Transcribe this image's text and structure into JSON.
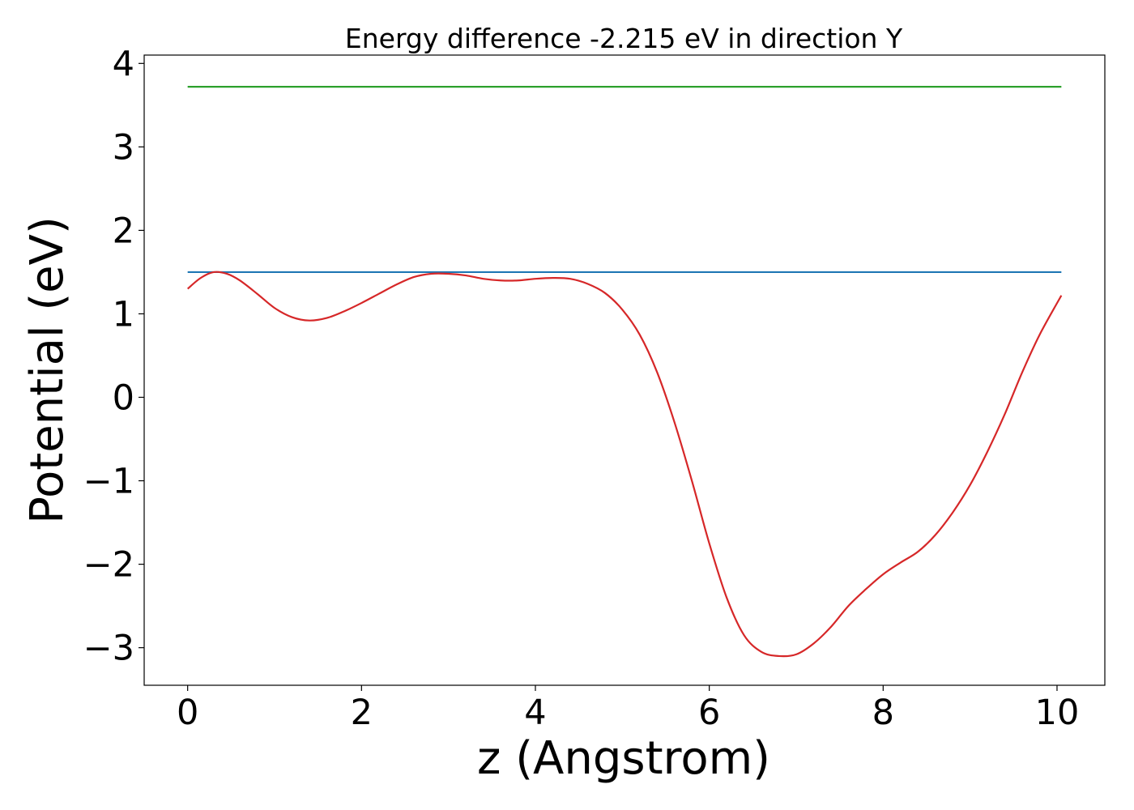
{
  "chart_data": {
    "type": "line",
    "title": "Energy difference -2.215 eV in direction Y",
    "xlabel": "z (Angstrom)",
    "ylabel": "Potential (eV)",
    "xlim": [
      -0.5,
      10.55
    ],
    "ylim": [
      -3.45,
      4.1
    ],
    "xticks": [
      0,
      2,
      4,
      6,
      8,
      10
    ],
    "xtick_labels": [
      "0",
      "2",
      "4",
      "6",
      "8",
      "10"
    ],
    "yticks": [
      -3,
      -2,
      -1,
      0,
      1,
      2,
      3,
      4
    ],
    "ytick_labels": [
      "−3",
      "−2",
      "−1",
      "0",
      "1",
      "2",
      "3",
      "4"
    ],
    "grid": false,
    "series": [
      {
        "color": "#2ca02c",
        "x": [
          0,
          10.05
        ],
        "y": [
          3.72,
          3.72
        ]
      },
      {
        "color": "#1f77b4",
        "x": [
          0,
          10.05
        ],
        "y": [
          1.5,
          1.5
        ]
      },
      {
        "color": "#d62728",
        "x": [
          0,
          0.15,
          0.3,
          0.45,
          0.6,
          0.8,
          1.0,
          1.2,
          1.4,
          1.6,
          1.8,
          2.0,
          2.2,
          2.4,
          2.6,
          2.8,
          3.0,
          3.2,
          3.4,
          3.6,
          3.8,
          4.0,
          4.2,
          4.4,
          4.6,
          4.8,
          5.0,
          5.2,
          5.4,
          5.6,
          5.8,
          6.0,
          6.2,
          6.4,
          6.6,
          6.8,
          7.0,
          7.2,
          7.4,
          7.6,
          7.8,
          8.0,
          8.2,
          8.4,
          8.6,
          8.8,
          9.0,
          9.2,
          9.4,
          9.6,
          9.8,
          10.05
        ],
        "y": [
          1.3,
          1.43,
          1.5,
          1.48,
          1.4,
          1.24,
          1.07,
          0.96,
          0.92,
          0.95,
          1.03,
          1.13,
          1.24,
          1.35,
          1.44,
          1.48,
          1.48,
          1.46,
          1.42,
          1.4,
          1.4,
          1.42,
          1.43,
          1.42,
          1.36,
          1.25,
          1.05,
          0.75,
          0.3,
          -0.3,
          -1.0,
          -1.75,
          -2.4,
          -2.85,
          -3.05,
          -3.1,
          -3.08,
          -2.95,
          -2.75,
          -2.5,
          -2.3,
          -2.12,
          -1.98,
          -1.85,
          -1.65,
          -1.38,
          -1.05,
          -0.65,
          -0.2,
          0.3,
          0.75,
          1.22
        ]
      }
    ]
  }
}
